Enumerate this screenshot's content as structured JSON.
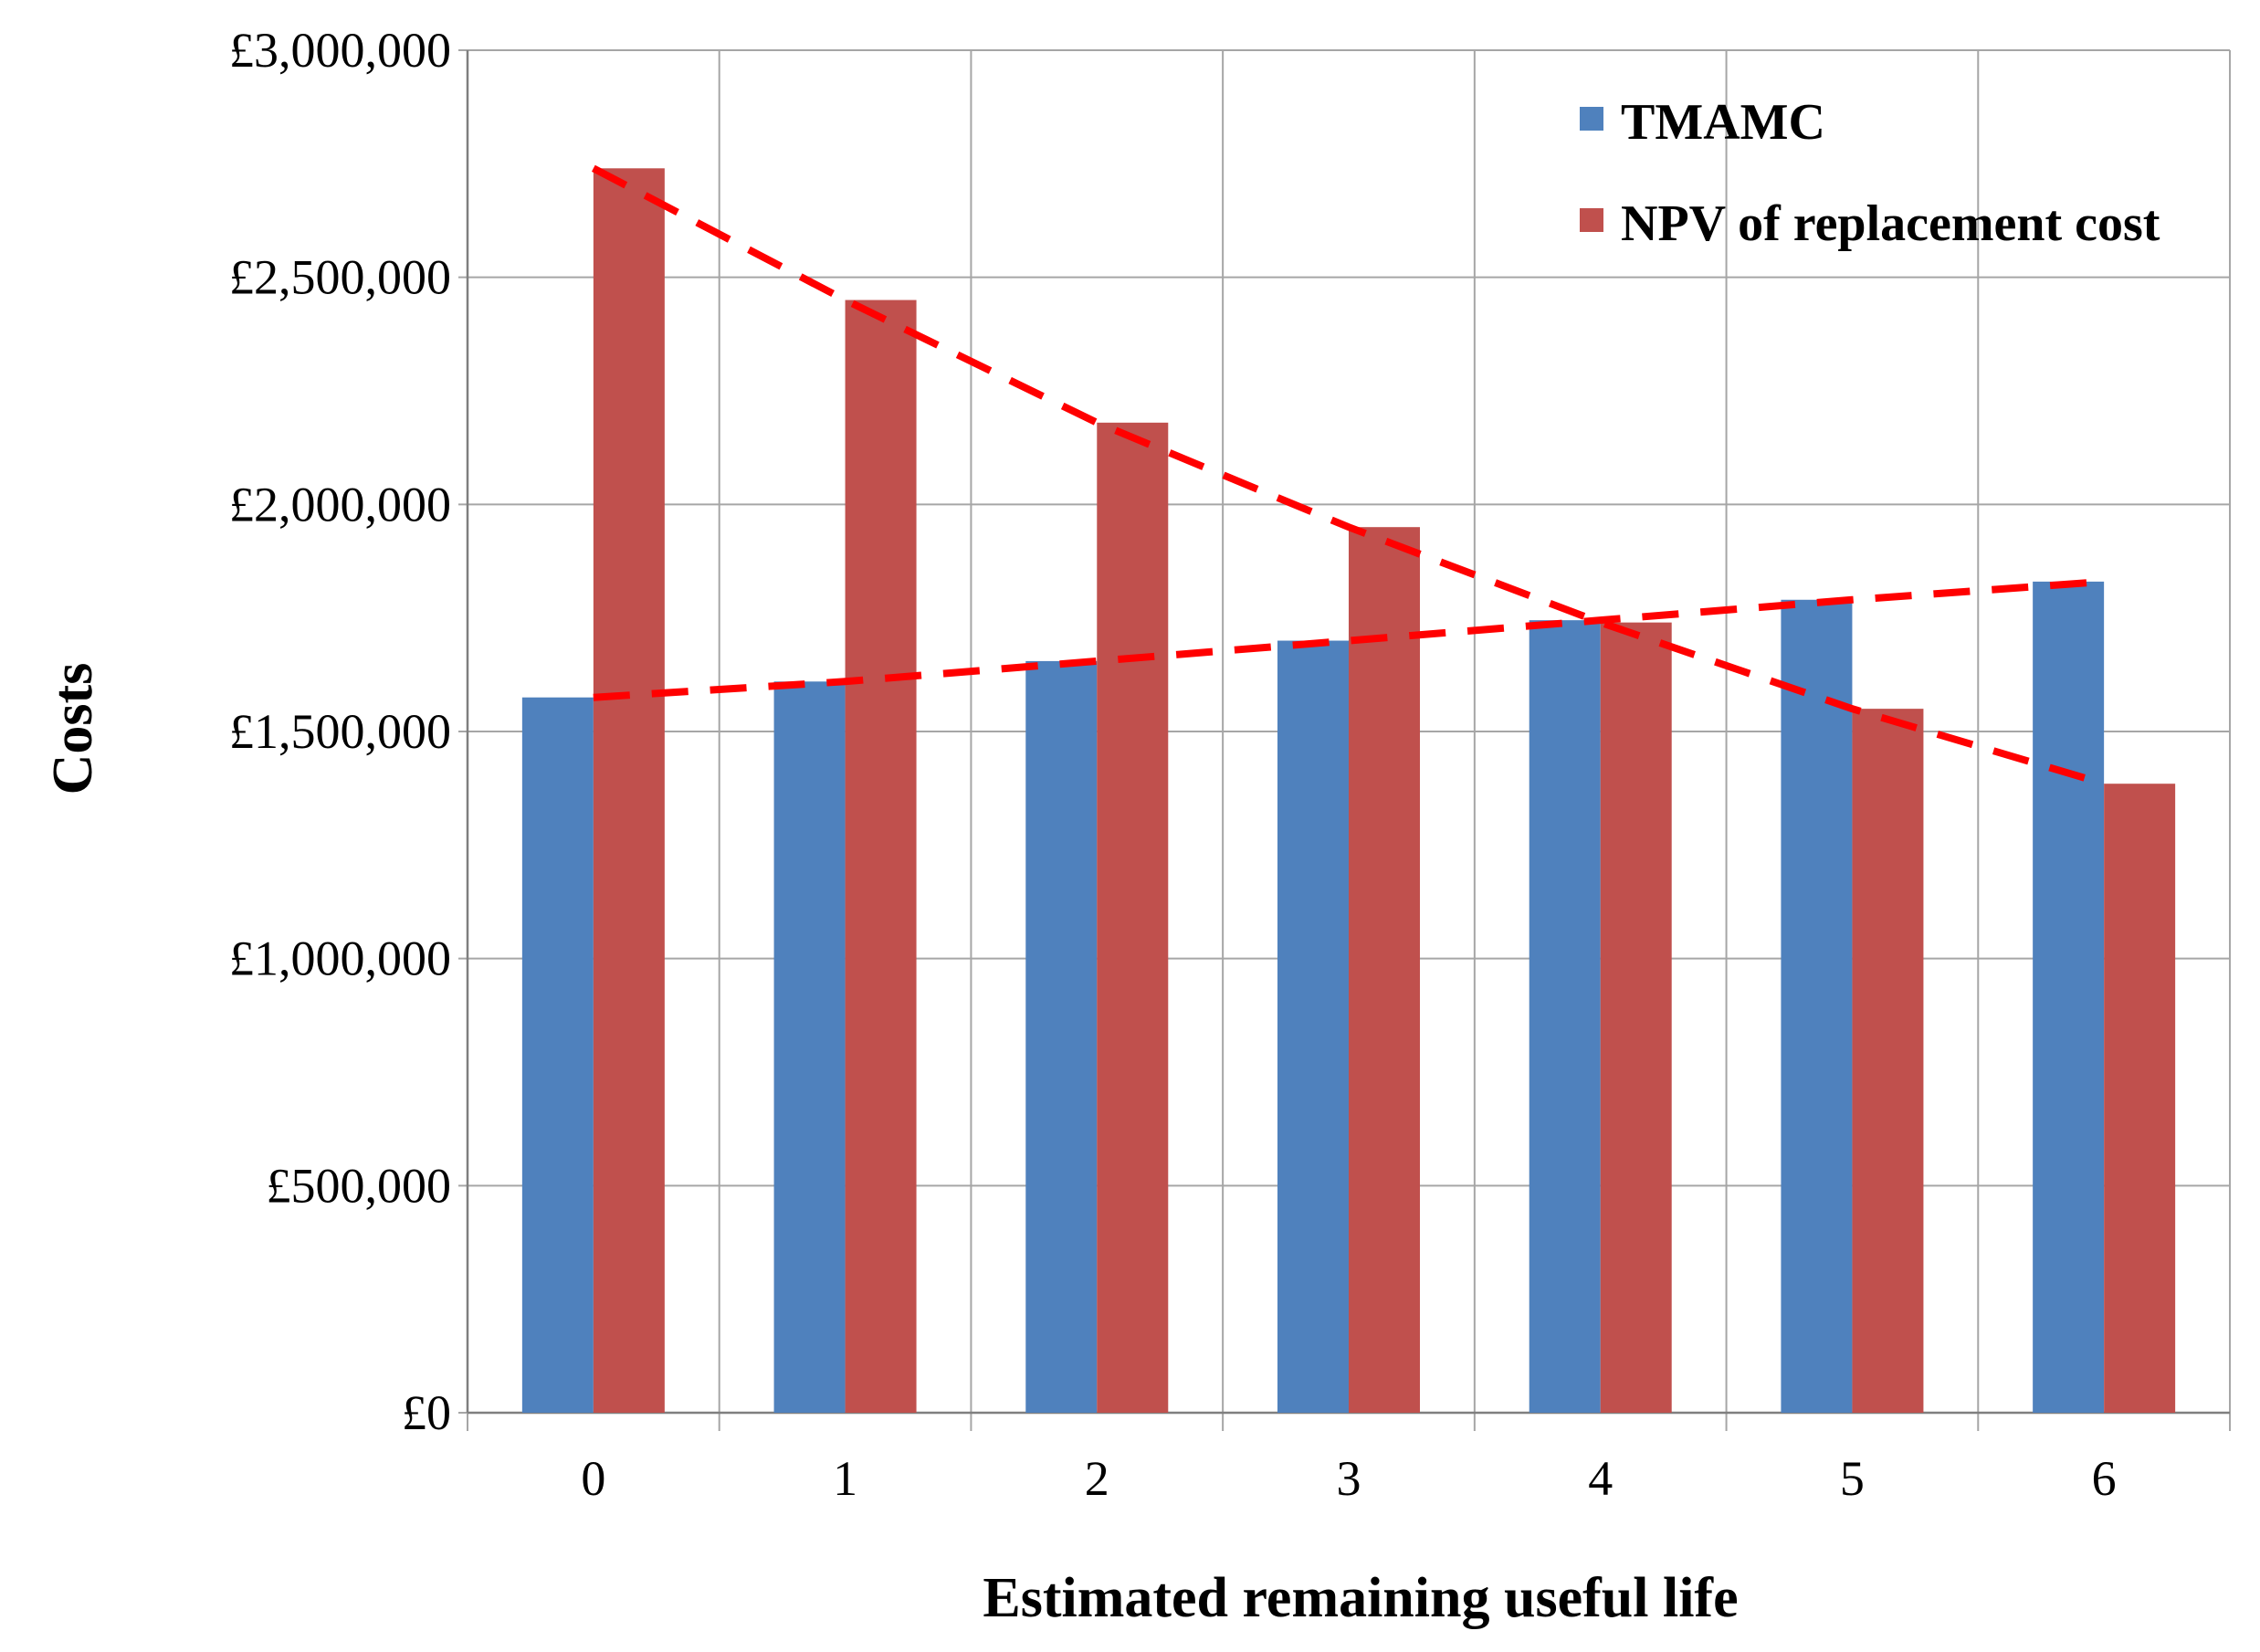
{
  "chart_data": {
    "type": "bar",
    "title": "",
    "xlabel": "Estimated remaining useful life",
    "ylabel": "Costs",
    "categories": [
      "0",
      "1",
      "2",
      "3",
      "4",
      "5",
      "6"
    ],
    "ylim": [
      0,
      3000000
    ],
    "y_ticks": [
      0,
      500000,
      1000000,
      1500000,
      2000000,
      2500000,
      3000000
    ],
    "y_tick_labels": [
      "£0",
      "£500,000",
      "£1,000,000",
      "£1,500,000",
      "£2,000,000",
      "£2,500,000",
      "£3,000,000"
    ],
    "grid": true,
    "legend_position": "top-right",
    "series": [
      {
        "name": "TMAMC",
        "color": "#4f81bd",
        "values": [
          1575000,
          1610000,
          1655000,
          1700000,
          1745000,
          1790000,
          1830000
        ]
      },
      {
        "name": "NPV of replacement cost",
        "color": "#c0504d",
        "values": [
          2740000,
          2450000,
          2180000,
          1950000,
          1740000,
          1550000,
          1385000
        ]
      }
    ],
    "trendlines": [
      {
        "series": "TMAMC",
        "color": "#ff0000",
        "style": "dashed"
      },
      {
        "series": "NPV of replacement cost",
        "color": "#ff0000",
        "style": "dashed"
      }
    ]
  }
}
